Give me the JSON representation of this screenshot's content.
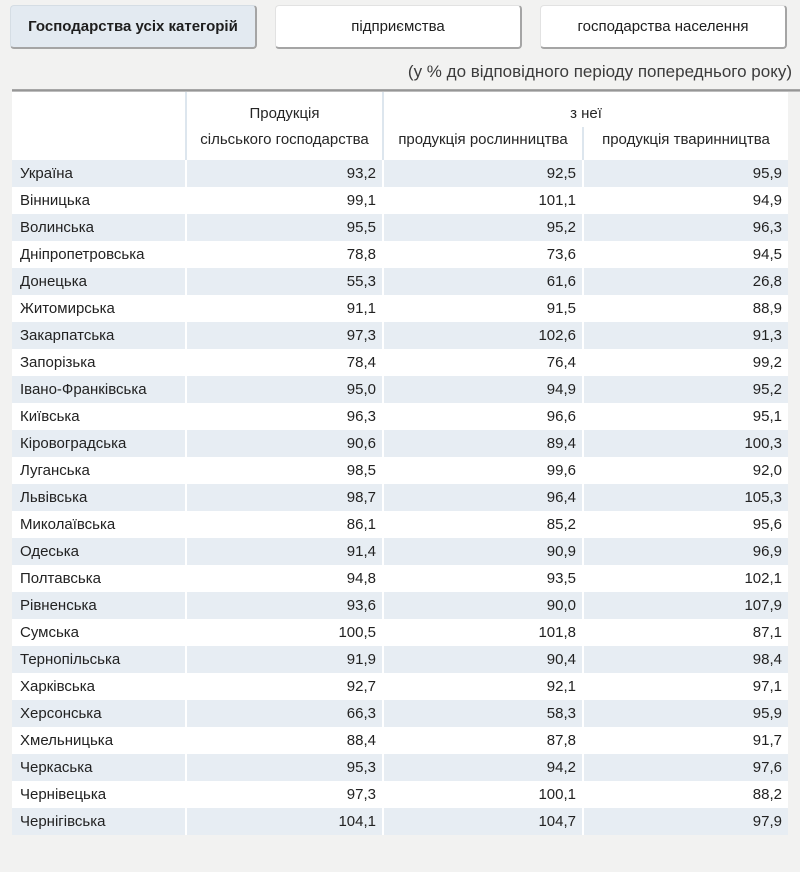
{
  "tabs": [
    {
      "label": "Господарства усіх категорій",
      "active": true
    },
    {
      "label": "підприємства",
      "active": false
    },
    {
      "label": "господарства населення",
      "active": false
    }
  ],
  "subtitle": "(у % до відповідного періоду попереднього року)",
  "table": {
    "header": {
      "col_main_line1": "Продукція",
      "col_main_line2": "сільського господарства",
      "group": "з неї",
      "col_crop": "продукція рослинництва",
      "col_livestock": "продукція тваринництва"
    },
    "rows": [
      [
        "Україна",
        "93,2",
        "92,5",
        "95,9"
      ],
      [
        "Вінницька",
        "99,1",
        "101,1",
        "94,9"
      ],
      [
        "Волинська",
        "95,5",
        "95,2",
        "96,3"
      ],
      [
        "Дніпропетровська",
        "78,8",
        "73,6",
        "94,5"
      ],
      [
        "Донецька",
        "55,3",
        "61,6",
        "26,8"
      ],
      [
        "Житомирська",
        "91,1",
        "91,5",
        "88,9"
      ],
      [
        "Закарпатська",
        "97,3",
        "102,6",
        "91,3"
      ],
      [
        "Запорізька",
        "78,4",
        "76,4",
        "99,2"
      ],
      [
        "Івано-Франківська",
        "95,0",
        "94,9",
        "95,2"
      ],
      [
        "Київська",
        "96,3",
        "96,6",
        "95,1"
      ],
      [
        "Кіровоградська",
        "90,6",
        "89,4",
        "100,3"
      ],
      [
        "Луганська",
        "98,5",
        "99,6",
        "92,0"
      ],
      [
        "Львівська",
        "98,7",
        "96,4",
        "105,3"
      ],
      [
        "Миколаївська",
        "86,1",
        "85,2",
        "95,6"
      ],
      [
        "Одеська",
        "91,4",
        "90,9",
        "96,9"
      ],
      [
        "Полтавська",
        "94,8",
        "93,5",
        "102,1"
      ],
      [
        "Рівненська",
        "93,6",
        "90,0",
        "107,9"
      ],
      [
        "Сумська",
        "100,5",
        "101,8",
        "87,1"
      ],
      [
        "Тернопільська",
        "91,9",
        "90,4",
        "98,4"
      ],
      [
        "Харківська",
        "92,7",
        "92,1",
        "97,1"
      ],
      [
        "Херсонська",
        "66,3",
        "58,3",
        "95,9"
      ],
      [
        "Хмельницька",
        "88,4",
        "87,8",
        "91,7"
      ],
      [
        "Черкаська",
        "95,3",
        "94,2",
        "97,6"
      ],
      [
        "Чернівецька",
        "97,3",
        "100,1",
        "88,2"
      ],
      [
        "Чернігівська",
        "104,1",
        "104,7",
        "97,9"
      ]
    ]
  },
  "colors": {
    "active_tab_bg": "#e3eaf1",
    "row_stripe": "#e7edf3",
    "page_bg": "#f2f2f1",
    "header_separator": "#dde6ee"
  }
}
